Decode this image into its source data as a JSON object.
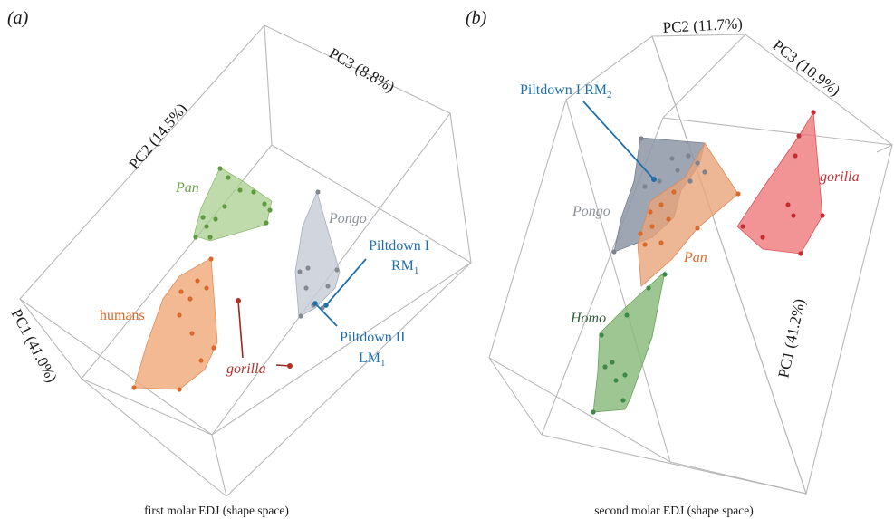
{
  "chart_data": [
    {
      "type": "scatter",
      "panel": "(a)",
      "caption": "first molar EDJ (shape space)",
      "axes": {
        "pc1": "PC1 (41.0%)",
        "pc2": "PC2 (14.5%)",
        "pc3": "PC3 (8.8%)"
      },
      "groups": [
        {
          "name": "Pan",
          "color": "#6a9e4a",
          "hull": "#a9cf8f",
          "italic": true
        },
        {
          "name": "Pongo",
          "color": "#8a8f99",
          "hull": "#c5cad6",
          "italic": true
        },
        {
          "name": "humans",
          "color": "#d96a2b",
          "hull": "#f0a878",
          "italic": false
        },
        {
          "name": "gorilla",
          "color": "#b0302a",
          "hull": "#e07a72",
          "italic": true
        }
      ],
      "annotations": [
        {
          "text": "Piltdown I",
          "sub_line": "RM",
          "sub": "1",
          "color": "#1f6fa8"
        },
        {
          "text": "Piltdown II",
          "sub_line": "LM",
          "sub": "1",
          "color": "#1f6fa8"
        }
      ]
    },
    {
      "type": "scatter",
      "panel": "(b)",
      "caption": "second molar EDJ (shape space)",
      "axes": {
        "pc1": "PC1 (41.2%)",
        "pc2": "PC2 (11.7%)",
        "pc3": "PC3 (10.9%)"
      },
      "groups": [
        {
          "name": "Pongo",
          "color": "#8a8f99",
          "hull": "#8e97a6",
          "italic": true
        },
        {
          "name": "Pan",
          "color": "#d96a2b",
          "hull": "#e9a47a",
          "italic": true
        },
        {
          "name": "gorilla",
          "color": "#c22f33",
          "hull": "#ee6f73",
          "italic": true
        },
        {
          "name": "Homo",
          "color": "#2f7a3a",
          "hull": "#86b878",
          "italic": true
        }
      ],
      "annotations": [
        {
          "text": "Piltdown I RM",
          "sub": "2",
          "color": "#1f6fa8"
        }
      ]
    }
  ]
}
